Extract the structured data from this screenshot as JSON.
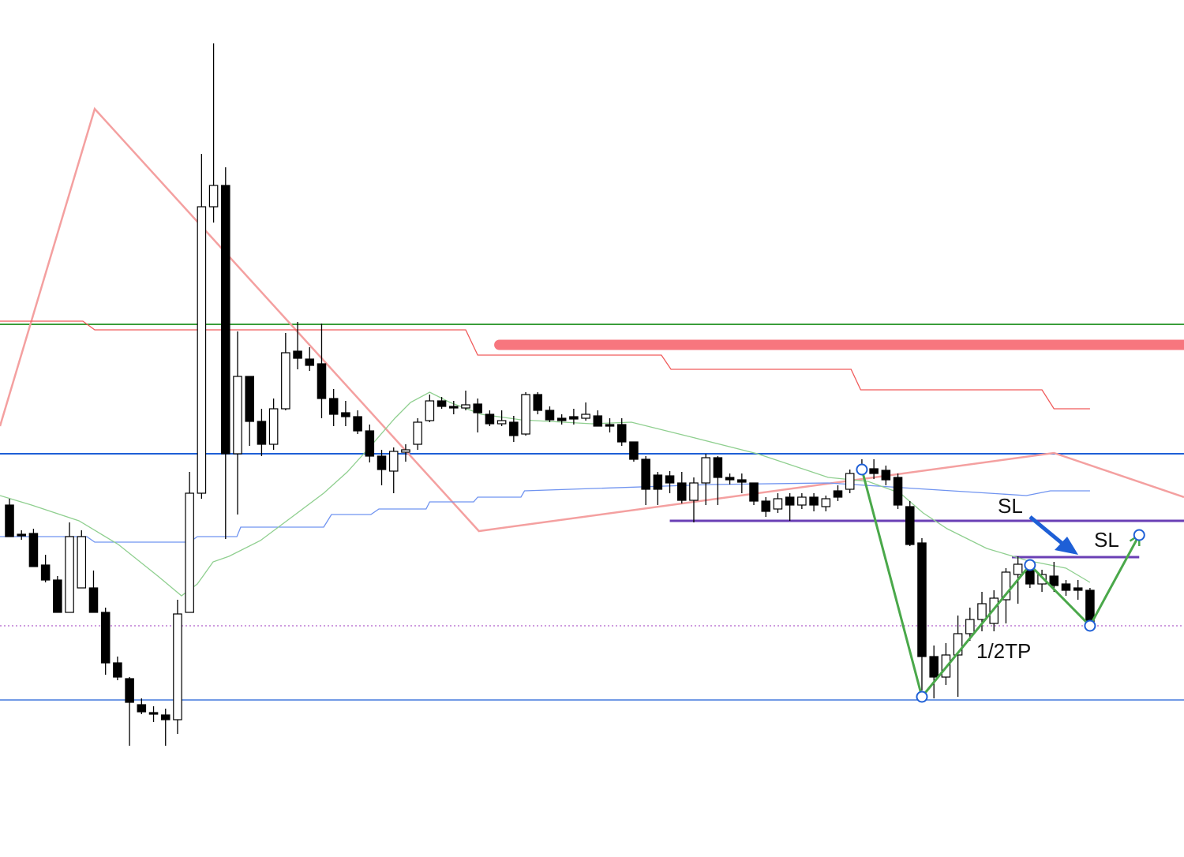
{
  "chart_data": {
    "type": "candlestick",
    "xlim": [
      -0.79,
      97.83
    ],
    "ylim": [
      0,
      1086
    ],
    "up_color": "#ffffff",
    "down_color": "#000000",
    "open": [
      446,
      409,
      410,
      370,
      351,
      310,
      341,
      341,
      310,
      246,
      226,
      193,
      183,
      180,
      174,
      310,
      461,
      824,
      851,
      511,
      609,
      552,
      523,
      568,
      641,
      631,
      625,
      581,
      563,
      558,
      540,
      508,
      489,
      513,
      523,
      553,
      578,
      571,
      569,
      574,
      561,
      549,
      551,
      536,
      586,
      566,
      556,
      558,
      556,
      559,
      548,
      548,
      526,
      504,
      484,
      483,
      474,
      452,
      474,
      506,
      481,
      478,
      474,
      451,
      441,
      456,
      446,
      456,
      444,
      464,
      466,
      492,
      492,
      490,
      481,
      444,
      398,
      254,
      228,
      256,
      283,
      301,
      296,
      326,
      358,
      368,
      346,
      356,
      346,
      341,
      338
    ],
    "high": [
      454,
      414,
      416,
      383,
      356,
      424,
      414,
      363,
      316,
      254,
      228,
      201,
      191,
      188,
      326,
      488,
      891,
      1031,
      874,
      666,
      609,
      568,
      581,
      664,
      678,
      646,
      676,
      593,
      578,
      566,
      548,
      516,
      519,
      523,
      556,
      586,
      583,
      578,
      591,
      581,
      566,
      566,
      559,
      589,
      589,
      571,
      561,
      568,
      576,
      566,
      556,
      556,
      526,
      508,
      488,
      489,
      488,
      481,
      511,
      508,
      486,
      486,
      474,
      456,
      461,
      461,
      461,
      461,
      458,
      471,
      491,
      504,
      504,
      496,
      486,
      451,
      404,
      268,
      271,
      306,
      316,
      336,
      338,
      366,
      381,
      374,
      364,
      374,
      351,
      351,
      341
    ],
    "low": [
      406,
      402,
      368,
      348,
      310,
      310,
      341,
      310,
      231,
      224,
      141,
      181,
      171,
      141,
      156,
      310,
      454,
      804,
      403,
      434,
      521,
      508,
      516,
      566,
      618,
      616,
      556,
      546,
      546,
      536,
      500,
      471,
      461,
      501,
      516,
      551,
      568,
      561,
      566,
      538,
      546,
      546,
      526,
      534,
      561,
      551,
      548,
      548,
      553,
      546,
      538,
      521,
      501,
      446,
      446,
      461,
      448,
      424,
      446,
      446,
      472,
      461,
      446,
      431,
      436,
      426,
      441,
      438,
      438,
      451,
      461,
      486,
      479,
      471,
      441,
      394,
      211,
      201,
      218,
      203,
      274,
      286,
      286,
      296,
      321,
      341,
      336,
      336,
      331,
      326,
      296
    ],
    "close": [
      406,
      407,
      368,
      351,
      310,
      406,
      406,
      310,
      246,
      228,
      196,
      184,
      181,
      174,
      308,
      461,
      824,
      851,
      511,
      609,
      552,
      523,
      568,
      639,
      632,
      623,
      581,
      561,
      558,
      540,
      508,
      491,
      514,
      516,
      551,
      578,
      571,
      569,
      573,
      563,
      549,
      553,
      534,
      586,
      566,
      554,
      553,
      555,
      561,
      546,
      546,
      526,
      504,
      466,
      466,
      474,
      452,
      474,
      506,
      481,
      478,
      475,
      451,
      438,
      454,
      446,
      456,
      446,
      454,
      456,
      486,
      489,
      486,
      478,
      446,
      396,
      254,
      228,
      256,
      283,
      301,
      321,
      328,
      361,
      371,
      346,
      358,
      344,
      338,
      338,
      296
    ],
    "levels": [
      {
        "value": 675,
        "color": "#3a9e3a",
        "width": 2
      },
      {
        "value": 511,
        "color": "#1e5fd6",
        "width": 2
      },
      {
        "value": 199,
        "color": "#1e5fd6",
        "width": 1.2
      },
      {
        "value": 293,
        "color": "#b15fc9",
        "width": 1.2,
        "dash": true
      },
      {
        "value": 426,
        "color": "#6a3fb5",
        "width": 3,
        "x": [
          55.0,
          97.83
        ]
      },
      {
        "value": 380,
        "color": "#6a3fb5",
        "width": 3,
        "x": [
          83.5,
          94.1
        ]
      },
      {
        "value": 649,
        "color": "#f7767e",
        "width": 13,
        "round": true,
        "x": [
          40.8,
          97.83
        ]
      }
    ],
    "lines": [
      {
        "color": "#f4a0a0",
        "width": 2.5,
        "x": [
          -0.79,
          7.1,
          39.1,
          87.0,
          97.83
        ],
        "values": [
          546,
          948,
          413,
          512,
          456
        ]
      },
      {
        "color": "#f05a5a",
        "width": 1.3,
        "x": [
          -0.79,
          6.11,
          7.1,
          38.0,
          39.0,
          54.3,
          55.1,
          70.1,
          70.9,
          86.0,
          87.0,
          90.0
        ],
        "values": [
          679,
          679,
          668,
          668,
          636,
          636,
          618,
          618,
          592,
          592,
          568,
          568
        ]
      },
      {
        "color": "#6f93f0",
        "width": 1.3,
        "x": [
          -0.79,
          6.44,
          7.1,
          15.0,
          15.65,
          18.94,
          19.26,
          26.17,
          26.82,
          30.1,
          30.77,
          34.7,
          35.0,
          38.66,
          39.0,
          42.6,
          42.9,
          58.4,
          68.2,
          84.7,
          86.7,
          90.0
        ],
        "values": [
          406,
          406,
          399,
          399,
          406,
          406,
          418,
          418,
          434,
          434,
          441,
          441,
          450,
          450,
          456,
          456,
          464,
          472,
          474,
          458,
          464,
          464
        ]
      },
      {
        "color": "#8fcf8f",
        "width": 1.3,
        "x": [
          -0.79,
          1.84,
          5.79,
          9.07,
          12.36,
          14.33,
          15.65,
          16.96,
          18.28,
          20.9,
          23.54,
          26.17,
          28.14,
          30.1,
          32.1,
          33.4,
          35.0,
          36.7,
          39.3,
          42.6,
          48.5,
          51.8,
          57.1,
          62.3,
          68.2,
          71.5,
          74.2,
          76.1,
          78.1,
          81.4,
          84.7,
          88.0,
          90.0
        ],
        "values": [
          458,
          446,
          426,
          396,
          356,
          331,
          346,
          374,
          381,
          401,
          431,
          461,
          488,
          521,
          556,
          576,
          589,
          576,
          561,
          554,
          549,
          551,
          531,
          511,
          481,
          476,
          461,
          436,
          416,
          391,
          376,
          366,
          348
        ]
      }
    ],
    "pattern": {
      "color": "#4aa84a",
      "marker_color": "#1e5fd6",
      "x": [
        71.0,
        76.0,
        85.0,
        90.0,
        94.1
      ],
      "values": [
        491,
        203,
        370,
        293,
        408
      ]
    },
    "annotations": [
      "SL",
      "SL",
      "1/2TP"
    ]
  }
}
